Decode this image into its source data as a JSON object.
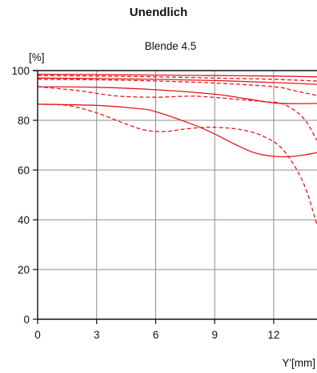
{
  "page": {
    "title": "Unendlich"
  },
  "chart_data": {
    "type": "line",
    "title": "Blende 4.5",
    "ylabel": "[%]",
    "xlabel": "Y'[mm]",
    "xlim": [
      0,
      14.2
    ],
    "ylim": [
      0,
      100
    ],
    "xticks": [
      0,
      3,
      6,
      9,
      12
    ],
    "yticks": [
      0,
      20,
      40,
      60,
      80,
      100
    ],
    "grid": true,
    "legend": "none",
    "colors": {
      "series": "#e8161b",
      "axis": "#111111",
      "grid": "#8c8c8c"
    },
    "series": [
      {
        "dash": "solid",
        "x": [
          0,
          3,
          6,
          9,
          12,
          14.2
        ],
        "y": [
          98.5,
          98.4,
          98.2,
          98,
          97.8,
          97.5
        ]
      },
      {
        "dash": "dashed",
        "x": [
          0,
          3,
          6,
          9,
          12,
          14.2
        ],
        "y": [
          98,
          97.8,
          97.5,
          97,
          96.5,
          95.8
        ]
      },
      {
        "dash": "solid",
        "x": [
          0,
          3,
          6,
          9,
          12,
          14.2
        ],
        "y": [
          97,
          96.8,
          96.5,
          96,
          95.2,
          94.5
        ]
      },
      {
        "dash": "dashed",
        "x": [
          0,
          3,
          6,
          9,
          12,
          13,
          14.2
        ],
        "y": [
          96.5,
          96.3,
          95.8,
          95,
          93.5,
          92,
          90
        ]
      },
      {
        "dash": "solid",
        "x": [
          0,
          3,
          6,
          9,
          10.5,
          12,
          13,
          14.2
        ],
        "y": [
          93.5,
          93.3,
          92.3,
          90.5,
          88.8,
          87,
          86.7,
          86.8
        ]
      },
      {
        "dash": "dashed",
        "x": [
          0,
          2,
          4,
          6,
          8,
          10,
          11.5,
          12.5,
          13.5,
          14.2
        ],
        "y": [
          93.5,
          92,
          89.8,
          89.3,
          89.7,
          88.5,
          87.5,
          86.5,
          81,
          72
        ]
      },
      {
        "dash": "solid",
        "x": [
          0,
          3,
          5,
          6,
          8,
          9,
          10,
          11,
          12,
          13,
          14.2
        ],
        "y": [
          86.5,
          86,
          84.8,
          83.5,
          78,
          74.5,
          70.5,
          67,
          65.5,
          65.5,
          67
        ]
      },
      {
        "dash": "dashed",
        "x": [
          0,
          1.5,
          3,
          4.5,
          5.5,
          6.5,
          7.5,
          8.5,
          9.5,
          10.5,
          11.5,
          12.5,
          13.5,
          14.2
        ],
        "y": [
          86.5,
          86,
          83,
          78.5,
          76,
          75.5,
          76.5,
          77.2,
          77,
          76,
          73.5,
          68,
          55,
          38
        ]
      }
    ]
  }
}
